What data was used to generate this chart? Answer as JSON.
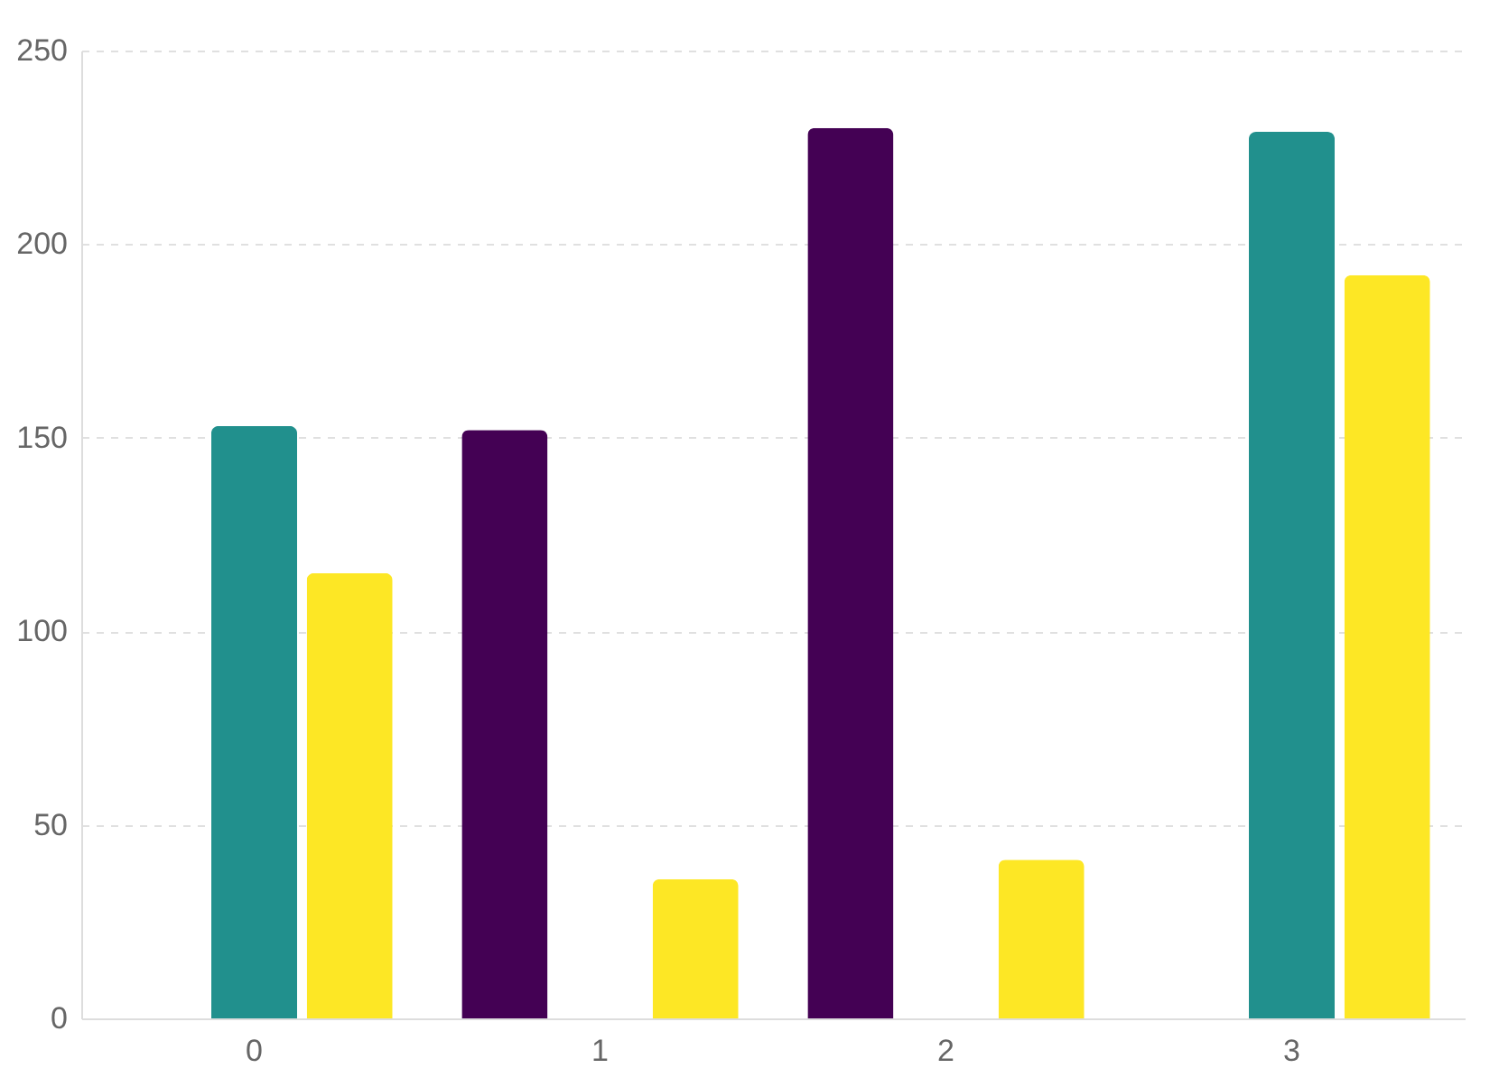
{
  "chart_data": {
    "type": "bar",
    "categories": [
      "0",
      "1",
      "2",
      "3"
    ],
    "series": [
      {
        "color": "#440154",
        "values": [
          null,
          152,
          230,
          null
        ]
      },
      {
        "color": "#21908d",
        "values": [
          153,
          null,
          null,
          229
        ]
      },
      {
        "color": "#fde725",
        "values": [
          115,
          36,
          41,
          192
        ]
      }
    ],
    "ylim": [
      0,
      250
    ],
    "yticks": [
      0,
      50,
      100,
      150,
      200,
      250
    ],
    "grid": "y",
    "legend": false
  }
}
